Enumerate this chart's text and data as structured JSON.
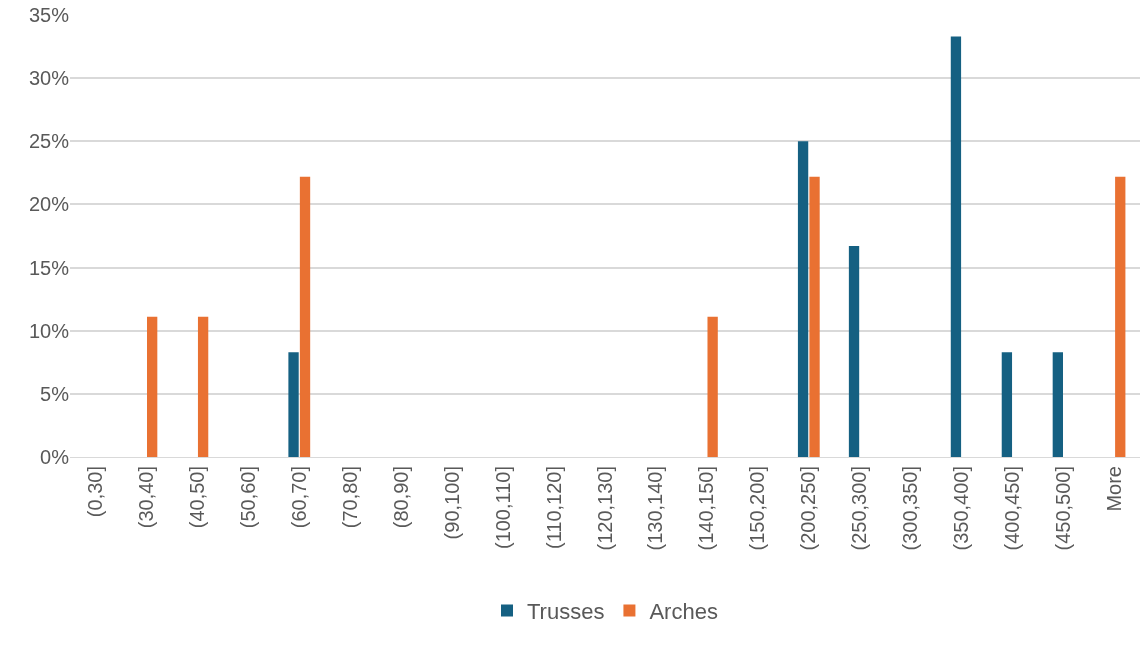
{
  "chart_data": {
    "type": "bar",
    "categories": [
      "(0,30]",
      "(30,40]",
      "(40,50]",
      "(50,60]",
      "(60,70]",
      "(70,80]",
      "(80,90]",
      "(90,100]",
      "(100,110]",
      "(110,120]",
      "(120,130]",
      "(130,140]",
      "(140,150]",
      "(150,200]",
      "(200,250]",
      "(250,300]",
      "(300,350]",
      "(350,400]",
      "(400,450]",
      "(450,500]",
      "More"
    ],
    "series": [
      {
        "name": "Trusses",
        "color": "#156082",
        "values": [
          0,
          0,
          0,
          0,
          8.3,
          0,
          0,
          0,
          0,
          0,
          0,
          0,
          0,
          0,
          25,
          16.7,
          0,
          33.3,
          8.3,
          8.3,
          0
        ]
      },
      {
        "name": "Arches",
        "color": "#e97132",
        "values": [
          0,
          11.1,
          11.1,
          0,
          22.2,
          0,
          0,
          0,
          0,
          0,
          0,
          0,
          11.1,
          0,
          22.2,
          0,
          0,
          0,
          0,
          0,
          22.2
        ]
      }
    ],
    "ylim": [
      0,
      35
    ],
    "yticks": [
      {
        "value": 0,
        "label": "0%"
      },
      {
        "value": 5,
        "label": "5%"
      },
      {
        "value": 10,
        "label": "10%"
      },
      {
        "value": 15,
        "label": "15%"
      },
      {
        "value": 20,
        "label": "20%"
      },
      {
        "value": 25,
        "label": "25%"
      },
      {
        "value": 30,
        "label": "30%"
      },
      {
        "value": 35,
        "label": "35%"
      }
    ],
    "grid": "y",
    "legend": "bottom"
  }
}
